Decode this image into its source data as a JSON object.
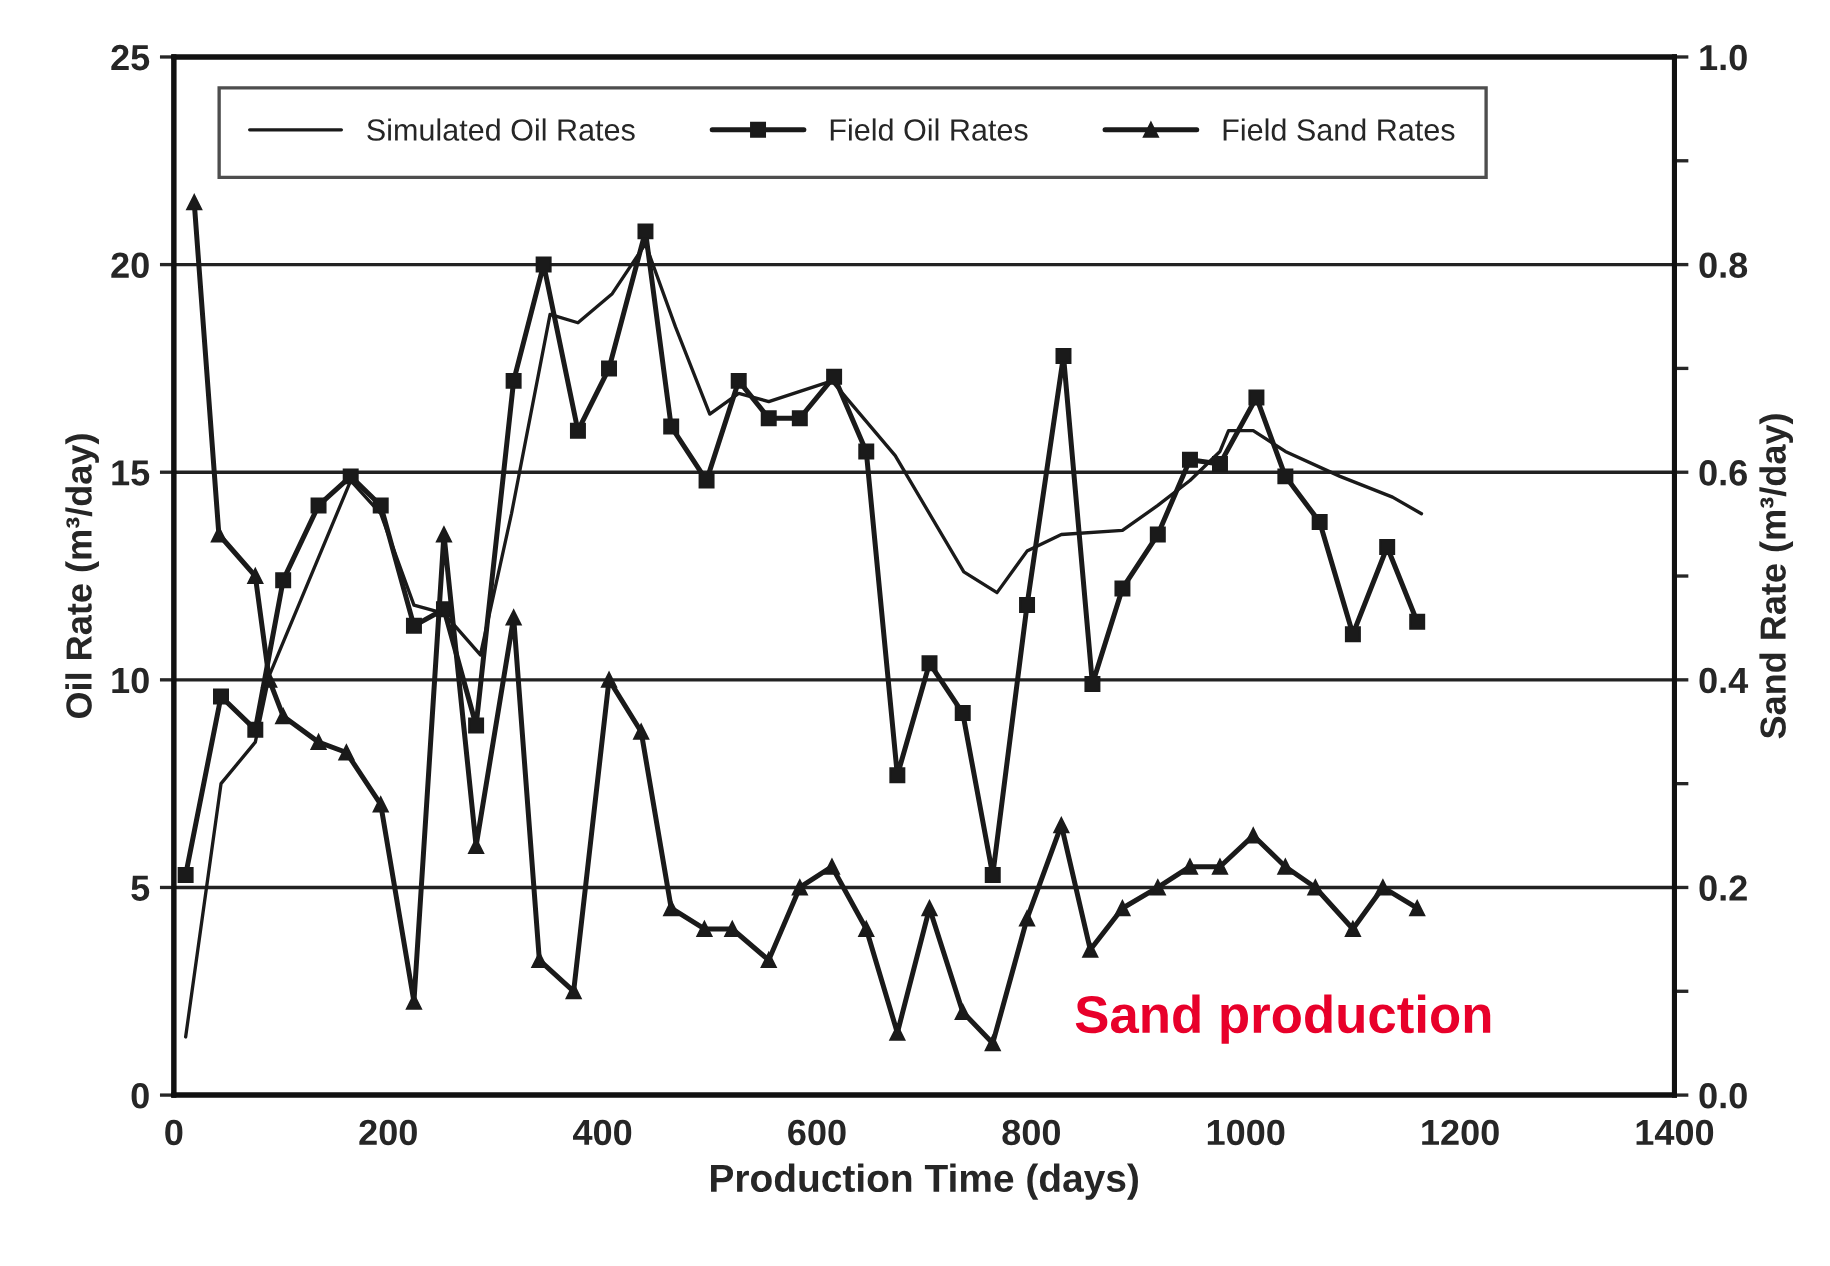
{
  "chart_data": {
    "type": "line",
    "xlabel": "Production Time (days)",
    "ylabel": "Oil Rate (m³/day)",
    "y2label": "Sand Rate (m³/day)",
    "xlim": [
      0,
      1400
    ],
    "xticks": [
      0,
      200,
      400,
      600,
      800,
      1000,
      1200,
      1400
    ],
    "ylim": [
      0,
      25
    ],
    "yticks": [
      0,
      5,
      10,
      15,
      20,
      25
    ],
    "y2lim": [
      0,
      1.0
    ],
    "y2ticks": [
      {
        "value": 0,
        "label": "0.0"
      },
      {
        "value": 0.1,
        "label": null
      },
      {
        "value": 0.2,
        "label": "0.2"
      },
      {
        "value": 0.3,
        "label": null
      },
      {
        "value": 0.4,
        "label": "0.4"
      },
      {
        "value": 0.5,
        "label": null
      },
      {
        "value": 0.6,
        "label": "0.6"
      },
      {
        "value": 0.7,
        "label": null
      },
      {
        "value": 0.8,
        "label": "0.8"
      },
      {
        "value": 0.9,
        "label": null
      },
      {
        "value": 1.0,
        "label": "1.0"
      }
    ],
    "grid": "y",
    "legend": "top left",
    "annotations": [
      "Sand production"
    ],
    "series": [
      {
        "name": "Simulated Oil Rates",
        "color": "#1a1a1a",
        "marker": "none",
        "x": [
          11,
          44,
          76,
          89,
          165,
          193,
          224,
          252,
          286,
          315,
          351,
          377,
          409,
          440,
          468,
          500,
          527,
          555,
          614,
          673,
          737,
          768,
          796,
          828,
          885,
          918,
          948,
          976,
          984,
          1007,
          1037,
          1088,
          1137,
          1164
        ],
        "values": [
          1.4,
          7.5,
          8.5,
          10.1,
          14.8,
          14.0,
          11.8,
          11.6,
          10.6,
          14.0,
          18.8,
          18.6,
          19.3,
          20.5,
          18.5,
          16.4,
          16.9,
          16.7,
          17.2,
          15.4,
          12.6,
          12.1,
          13.1,
          13.5,
          13.6,
          14.2,
          14.8,
          15.5,
          16.0,
          16.0,
          15.5,
          14.9,
          14.4,
          14.0
        ]
      },
      {
        "name": "Field Oil Rates",
        "color": "#1a1a1a",
        "marker": "square",
        "x": [
          11,
          44,
          76,
          102,
          135,
          165,
          193,
          224,
          252,
          282,
          317,
          345,
          377,
          406,
          440,
          464,
          497,
          527,
          555,
          584,
          616,
          646,
          675,
          705,
          736,
          764,
          796,
          830,
          857,
          885,
          918,
          948,
          976,
          1010,
          1037,
          1069,
          1100,
          1132,
          1160
        ],
        "values": [
          5.3,
          9.6,
          8.8,
          12.4,
          14.2,
          14.9,
          14.2,
          11.3,
          11.7,
          8.9,
          17.2,
          20.0,
          16.0,
          17.5,
          20.8,
          16.1,
          14.8,
          17.2,
          16.3,
          16.3,
          17.3,
          15.5,
          7.7,
          10.4,
          9.2,
          5.3,
          11.8,
          17.8,
          9.9,
          12.2,
          13.5,
          15.3,
          15.2,
          16.8,
          14.9,
          13.8,
          11.1,
          13.2,
          11.4
        ]
      },
      {
        "name": "Field Sand Rates",
        "color": "#1a1a1a",
        "marker": "triangle",
        "axis": "y2",
        "x": [
          19,
          42,
          76,
          89,
          102,
          135,
          161,
          193,
          224,
          252,
          282,
          317,
          341,
          373,
          406,
          436,
          464,
          495,
          521,
          555,
          584,
          614,
          646,
          675,
          705,
          736,
          764,
          796,
          828,
          855,
          885,
          918,
          948,
          976,
          1007,
          1037,
          1065,
          1100,
          1128,
          1160
        ],
        "values": [
          0.86,
          0.54,
          0.5,
          0.4,
          0.365,
          0.34,
          0.33,
          0.28,
          0.09,
          0.54,
          0.24,
          0.46,
          0.13,
          0.1,
          0.4,
          0.35,
          0.18,
          0.16,
          0.16,
          0.13,
          0.2,
          0.22,
          0.16,
          0.06,
          0.18,
          0.08,
          0.05,
          0.17,
          0.26,
          0.14,
          0.18,
          0.2,
          0.22,
          0.22,
          0.25,
          0.22,
          0.2,
          0.16,
          0.2,
          0.18
        ]
      }
    ]
  }
}
